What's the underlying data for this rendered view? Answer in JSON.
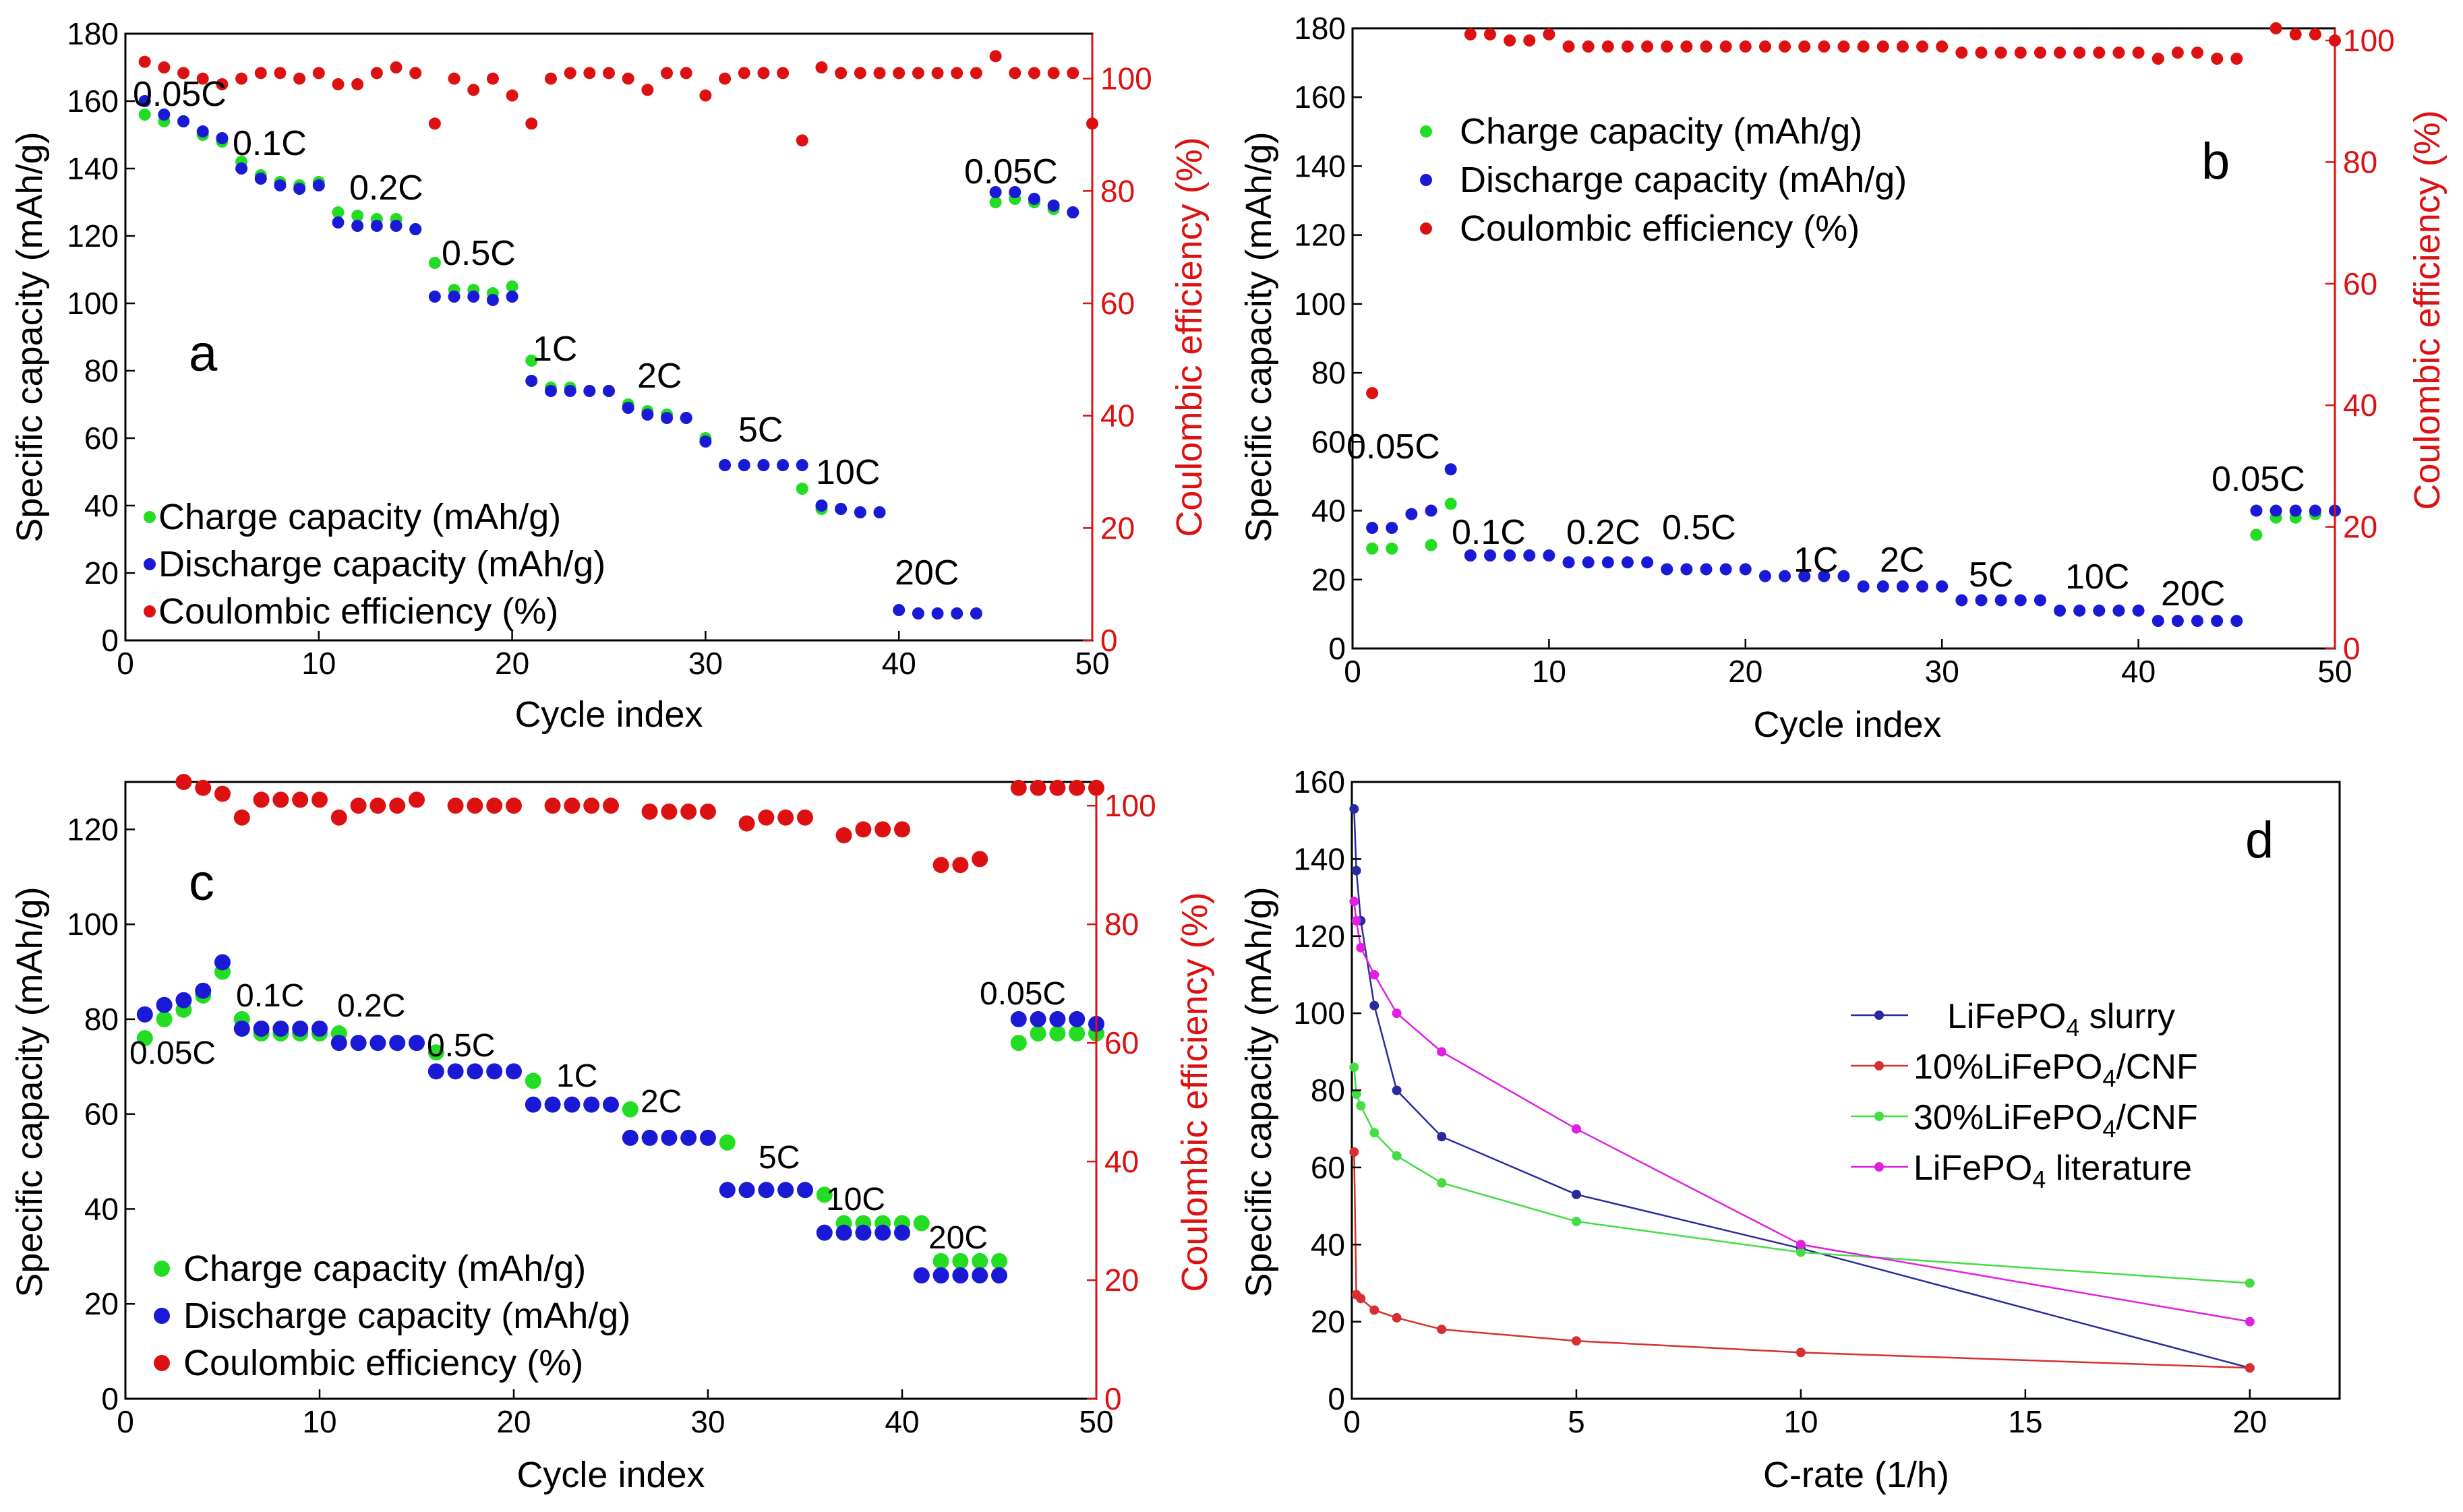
{
  "figure": {
    "colors": {
      "charge": "#22dd22",
      "discharge": "#1a1ad6",
      "ce": "#dd1111",
      "axis": "#000000",
      "right_axis": "#dd1111",
      "slurry": "#2a2aa0",
      "cnf10": "#d63030",
      "cnf30": "#44dd44",
      "literature": "#e020e0"
    },
    "panels": {
      "a": {
        "label": "a",
        "xlabel": "Cycle index",
        "ylabel": "Specific capacity (mAh/g)",
        "y2label": "Coulombic efficiency (%)",
        "xticks": [
          "0",
          "10",
          "20",
          "30",
          "40",
          "50"
        ],
        "yticks": [
          "0",
          "20",
          "40",
          "60",
          "80",
          "100",
          "120",
          "140",
          "160",
          "180"
        ],
        "y2ticks": [
          "0",
          "20",
          "40",
          "60",
          "80",
          "100"
        ],
        "rate_labels": [
          "0.05C",
          "0.1C",
          "0.2C",
          "0.5C",
          "1C",
          "2C",
          "5C",
          "10C",
          "20C",
          "0.05C"
        ],
        "legend": [
          "Charge capacity (mAh/g)",
          "Discharge capacity (mAh/g)",
          "Coulombic efficiency (%)"
        ]
      },
      "b": {
        "label": "b",
        "xlabel": "Cycle index",
        "ylabel": "Specific capacity (mAh/g)",
        "y2label": "Coulombic efficiency (%)",
        "xticks": [
          "0",
          "10",
          "20",
          "30",
          "40",
          "50"
        ],
        "yticks": [
          "0",
          "20",
          "40",
          "60",
          "80",
          "100",
          "120",
          "140",
          "160",
          "180"
        ],
        "y2ticks": [
          "0",
          "20",
          "40",
          "60",
          "80",
          "100"
        ],
        "rate_labels": [
          "0.05C",
          "0.1C",
          "0.2C",
          "0.5C",
          "1C",
          "2C",
          "5C",
          "10C",
          "20C",
          "0.05C"
        ],
        "legend": [
          "Charge capacity (mAh/g)",
          "Discharge capacity (mAh/g)",
          "Coulombic efficiency (%)"
        ]
      },
      "c": {
        "label": "c",
        "xlabel": "Cycle index",
        "ylabel": "Specific capacity (mAh/g)",
        "y2label": "Coulombic efficiency (%)",
        "xticks": [
          "0",
          "10",
          "20",
          "30",
          "40",
          "50"
        ],
        "yticks": [
          "0",
          "20",
          "40",
          "60",
          "80",
          "100",
          "120"
        ],
        "y2ticks": [
          "0",
          "20",
          "40",
          "60",
          "80",
          "100"
        ],
        "rate_labels": [
          "0.05C",
          "0.1C",
          "0.2C",
          "0.5C",
          "1C",
          "2C",
          "5C",
          "10C",
          "20C",
          "0.05C"
        ],
        "legend": [
          "Charge capacity (mAh/g)",
          "Discharge capacity (mAh/g)",
          "Coulombic efficiency (%)"
        ]
      },
      "d": {
        "label": "d",
        "xlabel": "C-rate (1/h)",
        "ylabel": "Specific capacity (mAh/g)",
        "xticks": [
          "0",
          "5",
          "10",
          "15",
          "20"
        ],
        "yticks": [
          "0",
          "20",
          "40",
          "60",
          "80",
          "100",
          "120",
          "140",
          "160"
        ],
        "legend_main": [
          "LiFePO",
          "10%LiFePO",
          "30%LiFePO",
          "LiFePO"
        ],
        "legend_sub": [
          "4",
          "4",
          "4",
          "4"
        ],
        "legend_tail": [
          " slurry",
          "/CNF",
          "/CNF",
          " literature"
        ]
      }
    }
  },
  "chart_data": [
    {
      "panel": "a",
      "type": "scatter",
      "x_axis": "Cycle index",
      "xlim": [
        0,
        50
      ],
      "ylim": [
        0,
        180
      ],
      "y2lim": [
        0,
        108
      ],
      "series": [
        {
          "name": "Charge capacity (mAh/g)",
          "axis": "left",
          "x": [
            1,
            2,
            3,
            4,
            5,
            6,
            7,
            8,
            9,
            10,
            11,
            12,
            13,
            14,
            15,
            16,
            17,
            18,
            19,
            20,
            21,
            22,
            23,
            24,
            25,
            26,
            27,
            28,
            29,
            30,
            31,
            32,
            33,
            34,
            35,
            36,
            37,
            38,
            39,
            45,
            46,
            47,
            48,
            49
          ],
          "values": [
            156,
            154,
            154,
            150,
            148,
            142,
            138,
            136,
            135,
            136,
            127,
            126,
            125,
            125,
            122,
            112,
            104,
            104,
            103,
            105,
            83,
            75,
            75,
            74,
            74,
            70,
            68,
            67,
            66,
            60,
            52,
            52,
            52,
            52,
            45,
            39,
            39,
            38,
            38,
            130,
            131,
            130,
            128,
            127
          ]
        },
        {
          "name": "Discharge capacity (mAh/g)",
          "axis": "left",
          "x": [
            1,
            2,
            3,
            4,
            5,
            6,
            7,
            8,
            9,
            10,
            11,
            12,
            13,
            14,
            15,
            16,
            17,
            18,
            19,
            20,
            21,
            22,
            23,
            24,
            25,
            26,
            27,
            28,
            29,
            30,
            31,
            32,
            33,
            34,
            35,
            36,
            37,
            38,
            39,
            40,
            41,
            42,
            43,
            44,
            45,
            46,
            47,
            48,
            49
          ],
          "values": [
            160,
            156,
            154,
            151,
            149,
            140,
            137,
            135,
            134,
            135,
            124,
            123,
            123,
            123,
            122,
            102,
            102,
            102,
            101,
            102,
            77,
            74,
            74,
            74,
            74,
            69,
            67,
            66,
            66,
            59,
            52,
            52,
            52,
            52,
            52,
            40,
            39,
            38,
            38,
            9,
            8,
            8,
            8,
            8,
            133,
            133,
            131,
            129,
            127
          ]
        },
        {
          "name": "Coulombic efficiency (%)",
          "axis": "right",
          "x": [
            1,
            2,
            3,
            4,
            5,
            6,
            7,
            8,
            9,
            10,
            11,
            12,
            13,
            14,
            15,
            16,
            17,
            18,
            19,
            20,
            21,
            22,
            23,
            24,
            25,
            26,
            27,
            28,
            29,
            30,
            31,
            32,
            33,
            34,
            35,
            36,
            37,
            38,
            39,
            40,
            41,
            42,
            43,
            44,
            45,
            46,
            47,
            48,
            49,
            50
          ],
          "values": [
            103,
            102,
            101,
            100,
            99,
            100,
            101,
            101,
            100,
            101,
            99,
            99,
            101,
            102,
            101,
            92,
            100,
            98,
            100,
            97,
            92,
            100,
            101,
            101,
            101,
            100,
            98,
            101,
            101,
            97,
            100,
            101,
            101,
            101,
            89,
            102,
            101,
            101,
            101,
            101,
            101,
            101,
            101,
            101,
            104,
            101,
            101,
            101,
            101,
            92
          ]
        }
      ]
    },
    {
      "panel": "b",
      "type": "scatter",
      "x_axis": "Cycle index",
      "xlim": [
        0,
        50
      ],
      "ylim": [
        0,
        180
      ],
      "y2lim": [
        0,
        102
      ],
      "series": [
        {
          "name": "Charge capacity (mAh/g)",
          "axis": "left",
          "x": [
            1,
            2,
            4,
            5,
            46,
            47,
            48,
            49
          ],
          "values": [
            29,
            29,
            30,
            42,
            33,
            38,
            38,
            39
          ]
        },
        {
          "name": "Discharge capacity (mAh/g)",
          "axis": "left",
          "x": [
            1,
            2,
            3,
            4,
            5,
            6,
            7,
            8,
            9,
            10,
            11,
            12,
            13,
            14,
            15,
            16,
            17,
            18,
            19,
            20,
            21,
            22,
            23,
            24,
            25,
            26,
            27,
            28,
            29,
            30,
            31,
            32,
            33,
            34,
            35,
            36,
            37,
            38,
            39,
            40,
            41,
            42,
            43,
            44,
            45,
            46,
            47,
            48,
            49,
            50
          ],
          "values": [
            35,
            35,
            39,
            40,
            52,
            27,
            27,
            27,
            27,
            27,
            25,
            25,
            25,
            25,
            25,
            23,
            23,
            23,
            23,
            23,
            21,
            21,
            21,
            21,
            21,
            18,
            18,
            18,
            18,
            18,
            14,
            14,
            14,
            14,
            14,
            11,
            11,
            11,
            11,
            11,
            8,
            8,
            8,
            8,
            8,
            40,
            40,
            40,
            40,
            40
          ]
        },
        {
          "name": "Coulombic efficiency (%)",
          "axis": "right",
          "x": [
            1,
            6,
            7,
            8,
            9,
            10,
            11,
            12,
            13,
            14,
            15,
            16,
            17,
            18,
            19,
            20,
            21,
            22,
            23,
            24,
            25,
            26,
            27,
            28,
            29,
            30,
            31,
            32,
            33,
            34,
            35,
            36,
            37,
            38,
            39,
            40,
            41,
            42,
            43,
            44,
            45,
            47,
            48,
            49,
            50
          ],
          "values": [
            42,
            101,
            101,
            100,
            100,
            101,
            99,
            99,
            99,
            99,
            99,
            99,
            99,
            99,
            99,
            99,
            99,
            99,
            99,
            99,
            99,
            99,
            99,
            99,
            99,
            99,
            98,
            98,
            98,
            98,
            98,
            98,
            98,
            98,
            98,
            98,
            97,
            98,
            98,
            97,
            97,
            102,
            101,
            101,
            100
          ]
        }
      ]
    },
    {
      "panel": "c",
      "type": "scatter",
      "x_axis": "Cycle index",
      "xlim": [
        0,
        50
      ],
      "ylim": [
        0,
        130
      ],
      "y2lim": [
        0,
        104
      ],
      "series": [
        {
          "name": "Charge capacity (mAh/g)",
          "axis": "left",
          "x": [
            1,
            2,
            3,
            4,
            5,
            6,
            7,
            8,
            9,
            10,
            11,
            16,
            21,
            26,
            31,
            32,
            33,
            34,
            35,
            36,
            37,
            38,
            39,
            40,
            41,
            42,
            43,
            44,
            45,
            46,
            47,
            48,
            49,
            50
          ],
          "values": [
            76,
            80,
            82,
            85,
            90,
            80,
            77,
            77,
            77,
            77,
            77,
            73,
            67,
            61,
            54,
            44,
            44,
            44,
            44,
            43,
            37,
            37,
            37,
            37,
            37,
            29,
            29,
            29,
            29,
            75,
            77,
            77,
            77,
            77
          ]
        },
        {
          "name": "Discharge capacity (mAh/g)",
          "axis": "left",
          "x": [
            1,
            2,
            3,
            4,
            5,
            6,
            7,
            8,
            9,
            10,
            11,
            12,
            13,
            14,
            15,
            16,
            17,
            18,
            19,
            20,
            21,
            22,
            23,
            24,
            25,
            26,
            27,
            28,
            29,
            30,
            31,
            32,
            33,
            34,
            35,
            36,
            37,
            38,
            39,
            40,
            41,
            42,
            43,
            44,
            45,
            46,
            47,
            48,
            49,
            50
          ],
          "values": [
            81,
            83,
            84,
            86,
            92,
            78,
            78,
            78,
            78,
            78,
            75,
            75,
            75,
            75,
            75,
            69,
            69,
            69,
            69,
            69,
            62,
            62,
            62,
            62,
            62,
            55,
            55,
            55,
            55,
            55,
            44,
            44,
            44,
            44,
            44,
            35,
            35,
            35,
            35,
            35,
            26,
            26,
            26,
            26,
            26,
            80,
            80,
            80,
            80,
            79
          ]
        },
        {
          "name": "Coulombic efficiency (%)",
          "axis": "right",
          "x": [
            3,
            4,
            5,
            6,
            7,
            8,
            9,
            10,
            11,
            12,
            13,
            14,
            15,
            17,
            18,
            19,
            20,
            22,
            23,
            24,
            25,
            27,
            28,
            29,
            30,
            32,
            33,
            34,
            35,
            37,
            38,
            39,
            40,
            42,
            43,
            44,
            46,
            47,
            48,
            49,
            50
          ],
          "values": [
            104,
            103,
            102,
            98,
            101,
            101,
            101,
            101,
            98,
            100,
            100,
            100,
            101,
            100,
            100,
            100,
            100,
            100,
            100,
            100,
            100,
            99,
            99,
            99,
            99,
            97,
            98,
            98,
            98,
            95,
            96,
            96,
            96,
            90,
            90,
            91,
            103,
            103,
            103,
            103,
            103
          ]
        }
      ]
    },
    {
      "panel": "d",
      "type": "line",
      "x_axis": "C-rate (1/h)",
      "xlim": [
        0,
        22
      ],
      "ylim": [
        0,
        160
      ],
      "series": [
        {
          "name": "LiFePO4 slurry",
          "x": [
            0.05,
            0.1,
            0.2,
            0.5,
            1,
            2,
            5,
            10,
            20
          ],
          "values": [
            153,
            137,
            124,
            102,
            80,
            68,
            53,
            39,
            8
          ]
        },
        {
          "name": "10%LiFePO4/CNF",
          "x": [
            0.05,
            0.1,
            0.2,
            0.5,
            1,
            2,
            5,
            10,
            20
          ],
          "values": [
            64,
            27,
            26,
            23,
            21,
            18,
            15,
            12,
            8
          ]
        },
        {
          "name": "30%LiFePO4/CNF",
          "x": [
            0.05,
            0.1,
            0.2,
            0.5,
            1,
            2,
            5,
            10,
            20
          ],
          "values": [
            86,
            79,
            76,
            69,
            63,
            56,
            46,
            38,
            30
          ]
        },
        {
          "name": "LiFePO4 literature",
          "x": [
            0.05,
            0.1,
            0.2,
            0.5,
            1,
            2,
            5,
            10,
            20
          ],
          "values": [
            129,
            124,
            117,
            110,
            100,
            90,
            70,
            40,
            20
          ]
        }
      ]
    }
  ]
}
